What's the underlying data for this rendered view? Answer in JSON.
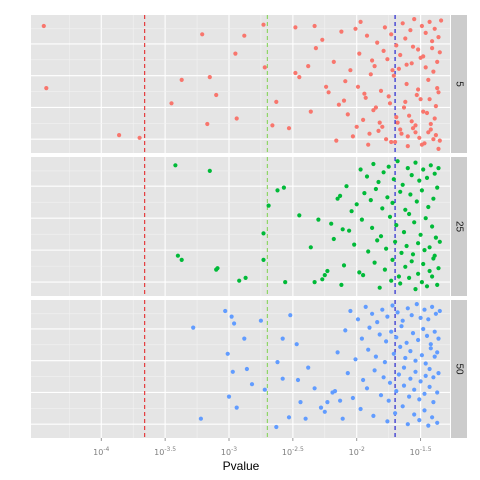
{
  "chart_data": {
    "type": "scatter",
    "layout": "faceted-rows",
    "xlabel": "Pvalue",
    "x_scale": "log10",
    "xlim": [
      -4.55,
      -1.27
    ],
    "x_ticks": [
      {
        "value": -4.0,
        "label": "10",
        "exp": "-4"
      },
      {
        "value": -3.5,
        "label": "10",
        "exp": "-3.5"
      },
      {
        "value": -3.0,
        "label": "10",
        "exp": "-3"
      },
      {
        "value": -2.5,
        "label": "10",
        "exp": "-2.5"
      },
      {
        "value": -2.0,
        "label": "10",
        "exp": "-2"
      },
      {
        "value": -1.5,
        "label": "10",
        "exp": "-1.5"
      }
    ],
    "reference_lines": [
      {
        "x": -3.66,
        "color": "#e41a1c",
        "style": "dashed"
      },
      {
        "x": -2.7,
        "color": "#7fd34e",
        "style": "dashed"
      },
      {
        "x": -1.7,
        "color": "#0000cc",
        "style": "dashed"
      }
    ],
    "y_jitter_range": [
      0,
      1
    ],
    "grid": true,
    "legend": "none",
    "panels": [
      {
        "strip_label": "5",
        "color": "#F8766D",
        "x": [
          -4.45,
          -2.33,
          -2.73,
          -2.48,
          -3.21,
          -2.88,
          -4.43,
          -3.45,
          -3.86,
          -2.63,
          -3.7,
          -2.66,
          -2.53,
          -2.94,
          -3.17,
          -2.36,
          -3.1,
          -3.37,
          -3.15,
          -2.72,
          -2.45,
          -2.38,
          -2.48,
          -2.32,
          -2.95,
          -2.27,
          -2.12,
          -1.97,
          -2.01,
          -2.18,
          -2.05,
          -1.92,
          -1.84,
          -1.78,
          -1.73,
          -1.69,
          -1.64,
          -1.62,
          -1.58,
          -1.55,
          -1.52,
          -1.49,
          -1.46,
          -1.43,
          -1.41,
          -1.39,
          -1.36,
          -1.34,
          -2.22,
          -2.14,
          -2.09,
          -1.99,
          -1.93,
          -1.89,
          -1.86,
          -1.81,
          -1.76,
          -1.71,
          -1.67,
          -1.61,
          -1.57,
          -1.53,
          -1.48,
          -1.44,
          -1.4,
          -1.37,
          -1.35,
          -2.07,
          -1.95,
          -1.87,
          -1.8,
          -1.74,
          -1.68,
          -1.63,
          -1.59,
          -1.54,
          -1.5,
          -1.45,
          -1.42,
          -1.38,
          -2.16,
          -2.03,
          -1.91,
          -1.83,
          -1.77,
          -1.7,
          -1.65,
          -1.6,
          -1.56,
          -1.51,
          -1.47,
          -1.42,
          -1.38,
          -1.35,
          -1.98,
          -1.88,
          -1.79,
          -1.72,
          -1.66,
          -1.61,
          -1.56,
          -1.5,
          -1.46,
          -1.41,
          -1.37,
          -2.24,
          -2.1,
          -1.94,
          -1.85,
          -1.75,
          -1.69,
          -1.62,
          -1.57,
          -1.52,
          -1.48,
          -1.43,
          -1.39,
          -1.36,
          -2.0,
          -1.9,
          -1.82,
          -1.73,
          -1.66,
          -1.6,
          -1.54,
          -1.49,
          -1.44,
          -1.4,
          -1.36
        ],
        "y": [
          0.92,
          0.92,
          0.93,
          0.91,
          0.86,
          0.85,
          0.47,
          0.36,
          0.13,
          0.37,
          0.11,
          0.2,
          0.18,
          0.25,
          0.21,
          0.3,
          0.42,
          0.53,
          0.55,
          0.62,
          0.55,
          0.63,
          0.58,
          0.76,
          0.72,
          0.82,
          0.88,
          0.95,
          0.9,
          0.66,
          0.6,
          0.85,
          0.8,
          0.91,
          0.86,
          0.78,
          0.94,
          0.83,
          0.89,
          0.97,
          0.75,
          0.92,
          0.87,
          0.95,
          0.81,
          0.9,
          0.84,
          0.96,
          0.44,
          0.35,
          0.52,
          0.48,
          0.4,
          0.57,
          0.63,
          0.45,
          0.68,
          0.56,
          0.61,
          0.5,
          0.65,
          0.42,
          0.7,
          0.53,
          0.59,
          0.47,
          0.73,
          0.28,
          0.24,
          0.31,
          0.19,
          0.36,
          0.22,
          0.33,
          0.27,
          0.15,
          0.39,
          0.29,
          0.21,
          0.34,
          0.09,
          0.12,
          0.06,
          0.16,
          0.1,
          0.08,
          0.14,
          0.05,
          0.18,
          0.11,
          0.07,
          0.17,
          0.13,
          0.09,
          0.72,
          0.67,
          0.74,
          0.6,
          0.71,
          0.64,
          0.77,
          0.69,
          0.62,
          0.76,
          0.66,
          0.48,
          0.38,
          0.43,
          0.33,
          0.41,
          0.26,
          0.37,
          0.23,
          0.46,
          0.3,
          0.39,
          0.25,
          0.44,
          0.19,
          0.14,
          0.22,
          0.08,
          0.17,
          0.12,
          0.2,
          0.06,
          0.15,
          0.1,
          0.03
        ]
      },
      {
        "strip_label": "25",
        "color": "#00BA38",
        "x": [
          -3.42,
          -3.15,
          -3.37,
          -3.09,
          -2.62,
          -2.73,
          -2.08,
          -2.23,
          -2.33,
          -3.4,
          -3.1,
          -2.92,
          -2.69,
          -2.57,
          -2.73,
          -2.45,
          -2.87,
          -2.56,
          -2.3,
          -2.15,
          -2.36,
          -2.11,
          -2.25,
          -2.04,
          -2.18,
          -1.97,
          -1.92,
          -1.87,
          -1.83,
          -1.79,
          -1.75,
          -1.71,
          -1.68,
          -1.64,
          -1.6,
          -1.57,
          -1.54,
          -1.51,
          -1.48,
          -1.45,
          -1.42,
          -1.39,
          -1.36,
          -2.13,
          -2.0,
          -1.94,
          -1.89,
          -1.85,
          -1.8,
          -1.76,
          -1.72,
          -1.66,
          -1.62,
          -1.58,
          -1.53,
          -1.49,
          -1.44,
          -1.4,
          -1.37,
          -2.2,
          -2.06,
          -1.96,
          -1.88,
          -1.81,
          -1.74,
          -1.69,
          -1.63,
          -1.59,
          -1.55,
          -1.5,
          -1.46,
          -1.41,
          -1.38,
          -2.02,
          -1.91,
          -1.84,
          -1.77,
          -1.7,
          -1.65,
          -1.61,
          -1.56,
          -1.52,
          -1.47,
          -1.43,
          -1.39,
          -1.35,
          -2.1,
          -1.98,
          -1.86,
          -1.78,
          -1.72,
          -1.67,
          -1.62,
          -1.57,
          -1.52,
          -1.48,
          -1.43,
          -1.4,
          -1.36,
          -2.27,
          -2.12,
          -1.95,
          -1.82,
          -1.73,
          -1.66,
          -1.59,
          -1.54,
          -1.49,
          -1.45,
          -1.41,
          -1.37
        ],
        "y": [
          0.94,
          0.9,
          0.26,
          0.2,
          0.76,
          0.26,
          0.79,
          0.18,
          0.1,
          0.29,
          0.19,
          0.11,
          0.65,
          0.78,
          0.45,
          0.58,
          0.13,
          0.1,
          0.55,
          0.7,
          0.35,
          0.48,
          0.15,
          0.61,
          0.41,
          0.91,
          0.86,
          0.95,
          0.82,
          0.89,
          0.93,
          0.84,
          0.97,
          0.8,
          0.92,
          0.87,
          0.96,
          0.83,
          0.91,
          0.85,
          0.94,
          0.88,
          0.92,
          0.72,
          0.66,
          0.74,
          0.69,
          0.77,
          0.63,
          0.71,
          0.67,
          0.75,
          0.62,
          0.73,
          0.68,
          0.76,
          0.64,
          0.7,
          0.78,
          0.52,
          0.47,
          0.55,
          0.49,
          0.43,
          0.57,
          0.51,
          0.46,
          0.59,
          0.53,
          0.44,
          0.56,
          0.5,
          0.42,
          0.37,
          0.32,
          0.4,
          0.34,
          0.39,
          0.31,
          0.36,
          0.3,
          0.38,
          0.33,
          0.35,
          0.29,
          0.39,
          0.22,
          0.17,
          0.24,
          0.19,
          0.26,
          0.14,
          0.21,
          0.25,
          0.16,
          0.23,
          0.18,
          0.27,
          0.2,
          0.12,
          0.08,
          0.15,
          0.06,
          0.11,
          0.09,
          0.13,
          0.05,
          0.1,
          0.07,
          0.14,
          0.08
        ]
      },
      {
        "strip_label": "50",
        "color": "#619CFF",
        "x": [
          -3.03,
          -2.98,
          -3.28,
          -2.96,
          -2.75,
          -2.52,
          -3.01,
          -2.58,
          -2.47,
          -2.88,
          -2.62,
          -2.38,
          -2.86,
          -2.97,
          -2.82,
          -2.46,
          -2.72,
          -2.58,
          -2.33,
          -2.44,
          -2.28,
          -2.23,
          -2.17,
          -2.13,
          -3.0,
          -2.94,
          -2.53,
          -2.63,
          -3.22,
          -2.4,
          -2.05,
          -1.99,
          -1.93,
          -1.88,
          -1.84,
          -1.8,
          -1.76,
          -1.72,
          -1.68,
          -1.64,
          -1.6,
          -1.57,
          -1.53,
          -1.5,
          -1.47,
          -1.44,
          -1.41,
          -1.38,
          -1.35,
          -2.09,
          -1.96,
          -1.9,
          -1.82,
          -1.77,
          -1.73,
          -1.69,
          -1.65,
          -1.61,
          -1.56,
          -1.52,
          -1.48,
          -1.45,
          -1.42,
          -1.39,
          -1.36,
          -2.15,
          -2.01,
          -1.91,
          -1.85,
          -1.78,
          -1.71,
          -1.66,
          -1.62,
          -1.58,
          -1.54,
          -1.49,
          -1.46,
          -1.42,
          -1.39,
          -1.37,
          -2.07,
          -1.95,
          -1.86,
          -1.79,
          -1.74,
          -1.67,
          -1.63,
          -1.58,
          -1.54,
          -1.5,
          -1.46,
          -1.43,
          -1.4,
          -1.36,
          -2.19,
          -2.03,
          -1.92,
          -1.81,
          -1.75,
          -1.69,
          -1.63,
          -1.59,
          -1.55,
          -1.51,
          -1.47,
          -1.43,
          -1.4,
          -1.37,
          -2.25,
          -2.11,
          -1.97,
          -1.87,
          -1.76,
          -1.7,
          -1.64,
          -1.6,
          -1.55,
          -1.51,
          -1.47,
          -1.44,
          -1.41,
          -1.37
        ],
        "y": [
          0.92,
          0.88,
          0.8,
          0.83,
          0.85,
          0.89,
          0.61,
          0.72,
          0.68,
          0.72,
          0.55,
          0.51,
          0.5,
          0.48,
          0.39,
          0.42,
          0.35,
          0.43,
          0.36,
          0.26,
          0.22,
          0.26,
          0.34,
          0.27,
          0.3,
          0.22,
          0.15,
          0.08,
          0.14,
          0.14,
          0.92,
          0.86,
          0.95,
          0.9,
          0.84,
          0.93,
          0.88,
          0.96,
          0.91,
          0.85,
          0.94,
          0.89,
          0.97,
          0.87,
          0.93,
          0.86,
          0.95,
          0.9,
          0.92,
          0.78,
          0.72,
          0.8,
          0.75,
          0.7,
          0.77,
          0.73,
          0.81,
          0.69,
          0.76,
          0.71,
          0.79,
          0.74,
          0.68,
          0.77,
          0.72,
          0.62,
          0.57,
          0.64,
          0.59,
          0.55,
          0.61,
          0.66,
          0.58,
          0.63,
          0.56,
          0.6,
          0.54,
          0.65,
          0.59,
          0.62,
          0.47,
          0.42,
          0.49,
          0.44,
          0.4,
          0.46,
          0.51,
          0.43,
          0.48,
          0.41,
          0.45,
          0.5,
          0.44,
          0.47,
          0.33,
          0.29,
          0.36,
          0.31,
          0.27,
          0.34,
          0.38,
          0.3,
          0.35,
          0.28,
          0.32,
          0.37,
          0.26,
          0.33,
          0.19,
          0.14,
          0.21,
          0.16,
          0.12,
          0.18,
          0.23,
          0.1,
          0.17,
          0.13,
          0.2,
          0.09,
          0.15,
          0.11
        ]
      }
    ]
  }
}
